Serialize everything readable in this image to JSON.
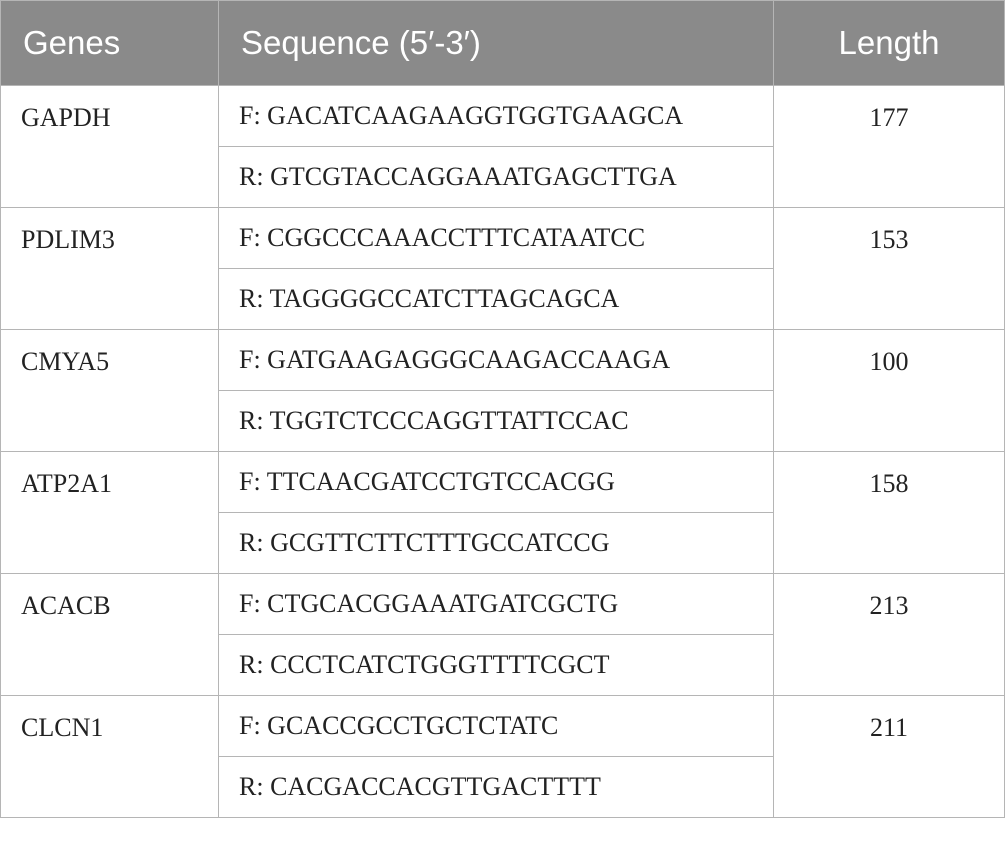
{
  "table": {
    "header": [
      "Genes",
      "Sequence (5′-3′)",
      "Length"
    ],
    "rows": [
      {
        "gene": "GAPDH",
        "forward": "F: GACATCAAGAAGGTGGTGAAGCA",
        "reverse": "R: GTCGTACCAGGAAATGAGCTTGA",
        "length": 177
      },
      {
        "gene": "PDLIM3",
        "forward": "F: CGGCCCAAACCTTTCATAATCC",
        "reverse": "R: TAGGGGCCATCTTAGCAGCA",
        "length": 153
      },
      {
        "gene": "CMYA5",
        "forward": "F: GATGAAGAGGGCAAGACCAAGA",
        "reverse": "R: TGGTCTCCCAGGTTATTCCAC",
        "length": 100
      },
      {
        "gene": "ATP2A1",
        "forward": "F: TTCAACGATCCTGTCCACGG",
        "reverse": "R: GCGTTCTTCTTTGCCATCCG",
        "length": 158
      },
      {
        "gene": "ACACB",
        "forward": "F: CTGCACGGAAATGATCGCTG",
        "reverse": "R: CCCTCATCTGGGTTTTCGCT",
        "length": 213
      },
      {
        "gene": "CLCN1",
        "forward": "F: GCACCGCCTGCTCTATC",
        "reverse": "R: CACGACCACGTTGACTTTT",
        "length": 211
      }
    ]
  }
}
